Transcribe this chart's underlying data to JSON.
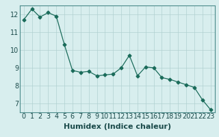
{
  "x": [
    0,
    1,
    2,
    3,
    4,
    5,
    6,
    7,
    8,
    9,
    10,
    11,
    12,
    13,
    14,
    15,
    16,
    17,
    18,
    19,
    20,
    21,
    22,
    23
  ],
  "y": [
    11.7,
    12.3,
    11.85,
    12.1,
    11.9,
    10.3,
    8.85,
    8.75,
    8.8,
    8.55,
    8.6,
    8.65,
    9.0,
    9.7,
    8.55,
    9.05,
    9.0,
    8.45,
    8.35,
    8.2,
    8.05,
    7.9,
    7.2,
    6.65
  ],
  "line_color": "#1a6b5a",
  "marker": "D",
  "marker_size": 2.5,
  "bg_color": "#d8eeee",
  "grid_color": "#b0d0d0",
  "xlabel": "Humidex (Indice chaleur)",
  "xlabel_fontsize": 8,
  "tick_fontsize": 7,
  "ylim": [
    6.5,
    12.5
  ],
  "xlim": [
    -0.5,
    23.5
  ],
  "yticks": [
    7,
    8,
    9,
    10,
    11,
    12
  ],
  "xticks": [
    0,
    1,
    2,
    3,
    4,
    5,
    6,
    7,
    8,
    9,
    10,
    11,
    12,
    13,
    14,
    15,
    16,
    17,
    18,
    19,
    20,
    21,
    22,
    23
  ],
  "xtick_labels": [
    "0",
    "1",
    "2",
    "3",
    "4",
    "5",
    "6",
    "7",
    "8",
    "9",
    "10",
    "11",
    "12",
    "13",
    "14",
    "15",
    "16",
    "17",
    "18",
    "19",
    "20",
    "21",
    "22",
    "23"
  ]
}
